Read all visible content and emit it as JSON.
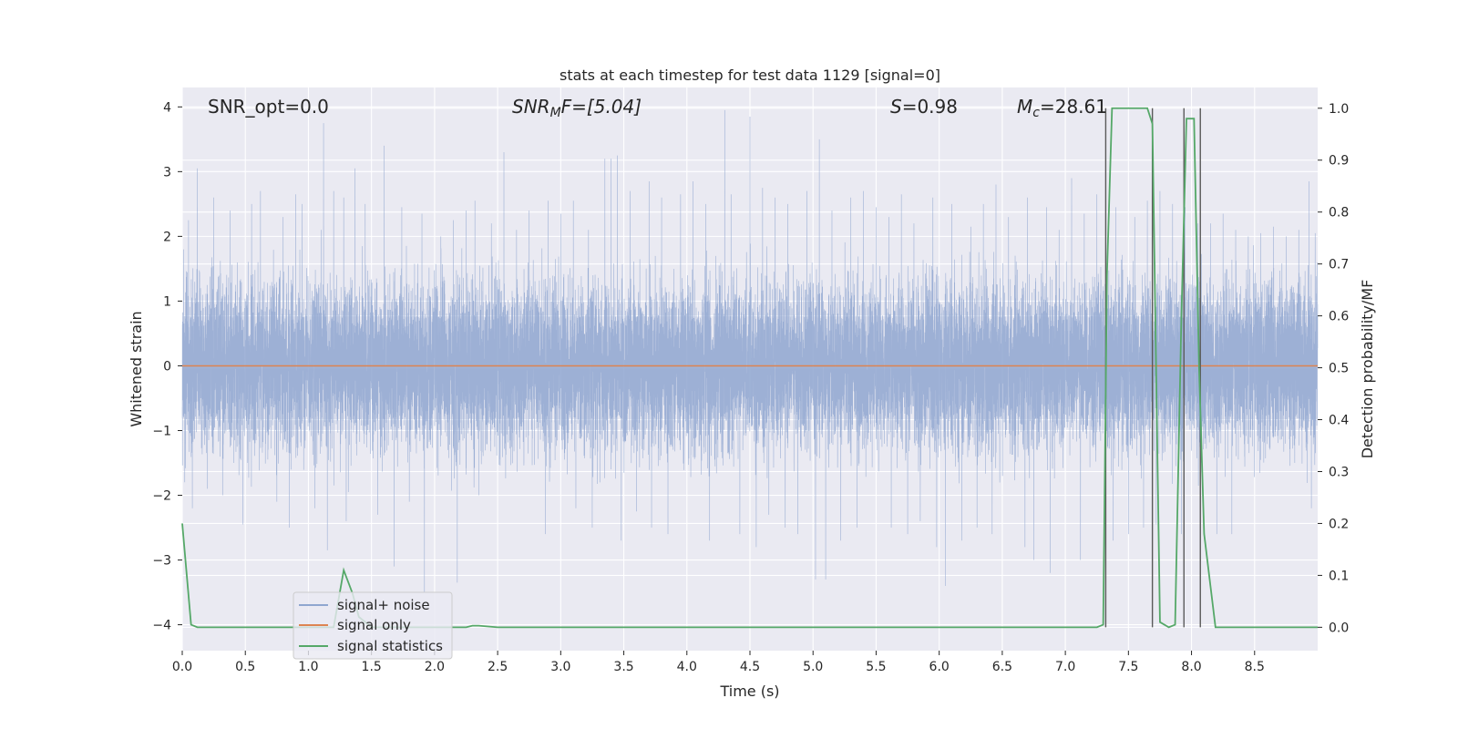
{
  "chart_data": {
    "type": "line",
    "title": "stats at each timestep for test data 1129 [signal=0]",
    "xlabel": "Time (s)",
    "ylabel": "Whitened strain",
    "y2label": "Detection probability/MF",
    "xlim": [
      0.0,
      9.0
    ],
    "ylim": [
      -4.4,
      4.3
    ],
    "y2lim": [
      -0.045,
      1.04
    ],
    "xticks": [
      "0.0",
      "0.5",
      "1.0",
      "1.5",
      "2.0",
      "2.5",
      "3.0",
      "3.5",
      "4.0",
      "4.5",
      "5.0",
      "5.5",
      "6.0",
      "6.5",
      "7.0",
      "7.5",
      "8.0",
      "8.5"
    ],
    "yticks": [
      "4",
      "3",
      "2",
      "1",
      "0",
      "−1",
      "−2",
      "−3",
      "−4"
    ],
    "y2ticks": [
      "1.0",
      "0.9",
      "0.8",
      "0.7",
      "0.6",
      "0.5",
      "0.4",
      "0.3",
      "0.2",
      "0.1",
      "0.0"
    ],
    "grid": true,
    "legend_position": "lower-left",
    "annotations": {
      "snr_opt": "SNR_opt=0.0",
      "snr_mf_main": "SNR",
      "snr_mf_sub": "M",
      "snr_mf_rest": "F=[5.04]",
      "s_main": "S",
      "s_rest": "=0.98",
      "mc_main": "M",
      "mc_sub": "c",
      "mc_rest": "=28.61"
    },
    "vertical_markers": [
      7.32,
      7.69,
      7.94,
      8.07
    ],
    "series": [
      {
        "name": "signal+ noise",
        "color": "#8fa6d0",
        "axis": "left",
        "sample_rate": 2048,
        "noise_band_lower": -1.6,
        "noise_band_upper": 1.5,
        "peaks": [
          [
            0.01,
            1.8
          ],
          [
            0.05,
            2.25
          ],
          [
            0.12,
            3.05
          ],
          [
            0.25,
            2.6
          ],
          [
            0.38,
            2.4
          ],
          [
            0.55,
            2.5
          ],
          [
            0.62,
            2.7
          ],
          [
            0.8,
            2.3
          ],
          [
            0.9,
            2.65
          ],
          [
            0.95,
            2.5
          ],
          [
            1.1,
            2.1
          ],
          [
            1.12,
            3.75
          ],
          [
            1.2,
            2.7
          ],
          [
            1.28,
            2.6
          ],
          [
            1.37,
            3.05
          ],
          [
            1.45,
            2.5
          ],
          [
            1.6,
            3.4
          ],
          [
            1.74,
            2.45
          ],
          [
            1.9,
            2.35
          ],
          [
            2.05,
            2.0
          ],
          [
            2.15,
            2.25
          ],
          [
            2.25,
            2.4
          ],
          [
            2.32,
            2.55
          ],
          [
            2.45,
            2.2
          ],
          [
            2.55,
            3.3
          ],
          [
            2.65,
            2.1
          ],
          [
            2.75,
            2.4
          ],
          [
            2.9,
            2.55
          ],
          [
            3.0,
            2.35
          ],
          [
            3.1,
            2.55
          ],
          [
            3.22,
            2.1
          ],
          [
            3.35,
            3.2
          ],
          [
            3.4,
            3.2
          ],
          [
            3.45,
            3.25
          ],
          [
            3.55,
            2.7
          ],
          [
            3.7,
            2.85
          ],
          [
            3.8,
            2.6
          ],
          [
            3.95,
            2.65
          ],
          [
            4.05,
            2.85
          ],
          [
            4.15,
            2.5
          ],
          [
            4.3,
            3.95
          ],
          [
            4.35,
            2.65
          ],
          [
            4.5,
            3.85
          ],
          [
            4.6,
            2.75
          ],
          [
            4.7,
            2.6
          ],
          [
            4.8,
            2.5
          ],
          [
            4.95,
            2.7
          ],
          [
            5.05,
            3.5
          ],
          [
            5.15,
            2.4
          ],
          [
            5.3,
            2.6
          ],
          [
            5.4,
            2.7
          ],
          [
            5.5,
            2.45
          ],
          [
            5.6,
            2.3
          ],
          [
            5.7,
            2.65
          ],
          [
            5.8,
            2.2
          ],
          [
            5.95,
            2.6
          ],
          [
            6.1,
            2.5
          ],
          [
            6.25,
            2.15
          ],
          [
            6.35,
            2.5
          ],
          [
            6.45,
            2.8
          ],
          [
            6.55,
            2.3
          ],
          [
            6.7,
            2.6
          ],
          [
            6.85,
            2.45
          ],
          [
            6.95,
            2.1
          ],
          [
            7.05,
            2.9
          ],
          [
            7.15,
            2.35
          ],
          [
            7.25,
            2.65
          ],
          [
            7.4,
            2.45
          ],
          [
            7.55,
            2.3
          ],
          [
            7.65,
            2.55
          ],
          [
            7.75,
            2.7
          ],
          [
            7.85,
            2.5
          ],
          [
            7.95,
            2.45
          ],
          [
            8.05,
            2.2
          ],
          [
            8.15,
            2.2
          ],
          [
            8.25,
            2.35
          ],
          [
            8.35,
            2.1
          ],
          [
            8.45,
            2.0
          ],
          [
            8.55,
            2.05
          ],
          [
            8.65,
            2.15
          ],
          [
            8.75,
            2.0
          ],
          [
            8.85,
            2.1
          ],
          [
            8.93,
            2.85
          ],
          [
            8.98,
            2.05
          ]
        ],
        "troughs": [
          [
            0.02,
            -1.8
          ],
          [
            0.08,
            -2.2
          ],
          [
            0.2,
            -1.9
          ],
          [
            0.32,
            -2.0
          ],
          [
            0.48,
            -2.45
          ],
          [
            0.62,
            -2.3
          ],
          [
            0.75,
            -2.1
          ],
          [
            0.85,
            -2.5
          ],
          [
            0.95,
            -2.55
          ],
          [
            1.05,
            -2.2
          ],
          [
            1.15,
            -2.85
          ],
          [
            1.3,
            -2.4
          ],
          [
            1.45,
            -2.6
          ],
          [
            1.55,
            -2.3
          ],
          [
            1.68,
            -3.1
          ],
          [
            1.8,
            -2.1
          ],
          [
            1.92,
            -3.5
          ],
          [
            2.05,
            -2.65
          ],
          [
            2.18,
            -3.35
          ],
          [
            2.25,
            -2.2
          ],
          [
            2.35,
            -2.0
          ],
          [
            2.45,
            -2.3
          ],
          [
            2.55,
            -3.25
          ],
          [
            2.65,
            -2.2
          ],
          [
            2.75,
            -2.3
          ],
          [
            2.88,
            -2.6
          ],
          [
            3.0,
            -2.4
          ],
          [
            3.12,
            -2.2
          ],
          [
            3.25,
            -2.5
          ],
          [
            3.35,
            -2.3
          ],
          [
            3.48,
            -2.7
          ],
          [
            3.6,
            -2.25
          ],
          [
            3.72,
            -2.5
          ],
          [
            3.85,
            -2.6
          ],
          [
            3.95,
            -2.3
          ],
          [
            4.05,
            -2.55
          ],
          [
            4.18,
            -2.7
          ],
          [
            4.3,
            -2.4
          ],
          [
            4.42,
            -2.6
          ],
          [
            4.55,
            -2.8
          ],
          [
            4.65,
            -2.3
          ],
          [
            4.78,
            -2.5
          ],
          [
            4.88,
            -2.6
          ],
          [
            5.02,
            -3.3
          ],
          [
            5.1,
            -3.3
          ],
          [
            5.22,
            -2.7
          ],
          [
            5.35,
            -2.5
          ],
          [
            5.5,
            -3.3
          ],
          [
            5.62,
            -2.5
          ],
          [
            5.75,
            -2.6
          ],
          [
            5.85,
            -2.4
          ],
          [
            5.98,
            -2.8
          ],
          [
            6.05,
            -3.4
          ],
          [
            6.18,
            -2.7
          ],
          [
            6.3,
            -2.5
          ],
          [
            6.42,
            -2.6
          ],
          [
            6.55,
            -2.9
          ],
          [
            6.68,
            -2.8
          ],
          [
            6.75,
            -3.0
          ],
          [
            6.88,
            -3.2
          ],
          [
            6.95,
            -2.9
          ],
          [
            7.05,
            -3.0
          ],
          [
            7.12,
            -3.0
          ],
          [
            7.25,
            -2.6
          ],
          [
            7.38,
            -2.7
          ],
          [
            7.5,
            -2.6
          ],
          [
            7.62,
            -2.5
          ],
          [
            7.72,
            -2.45
          ],
          [
            7.85,
            -3.05
          ],
          [
            7.92,
            -2.6
          ],
          [
            8.05,
            -2.5
          ],
          [
            8.2,
            -2.6
          ],
          [
            8.32,
            -2.6
          ],
          [
            8.45,
            -2.5
          ],
          [
            8.55,
            -2.6
          ],
          [
            8.65,
            -2.5
          ],
          [
            8.75,
            -2.4
          ],
          [
            8.85,
            -2.2
          ],
          [
            8.95,
            -2.2
          ]
        ]
      },
      {
        "name": "signal only",
        "color": "#dd8452",
        "axis": "left",
        "x": [
          0.0,
          9.0
        ],
        "y": [
          0.0,
          0.0
        ]
      },
      {
        "name": "signal statistics",
        "color": "#55a868",
        "axis": "right",
        "x": [
          0.0,
          0.07,
          0.12,
          0.5,
          1.0,
          1.1,
          1.2,
          1.24,
          1.28,
          1.35,
          1.4,
          1.5,
          2.0,
          2.25,
          2.3,
          2.35,
          2.5,
          3.0,
          4.0,
          5.0,
          6.0,
          7.0,
          7.25,
          7.3,
          7.33,
          7.37,
          7.45,
          7.5,
          7.6,
          7.65,
          7.69,
          7.75,
          7.82,
          7.87,
          7.92,
          7.96,
          8.02,
          8.06,
          8.1,
          8.15,
          8.19,
          8.3,
          9.0
        ],
        "y": [
          0.2,
          0.005,
          0.0,
          0.0,
          0.0,
          0.0,
          0.0,
          0.055,
          0.11,
          0.065,
          0.02,
          0.0,
          0.0,
          0.0,
          0.003,
          0.003,
          0.0,
          0.0,
          0.0,
          0.0,
          0.0,
          0.0,
          0.0,
          0.005,
          0.68,
          1.0,
          1.0,
          1.0,
          1.0,
          1.0,
          0.97,
          0.01,
          0.0,
          0.005,
          0.6,
          0.98,
          0.98,
          0.5,
          0.18,
          0.08,
          0.0,
          0.0,
          0.0
        ]
      }
    ]
  }
}
